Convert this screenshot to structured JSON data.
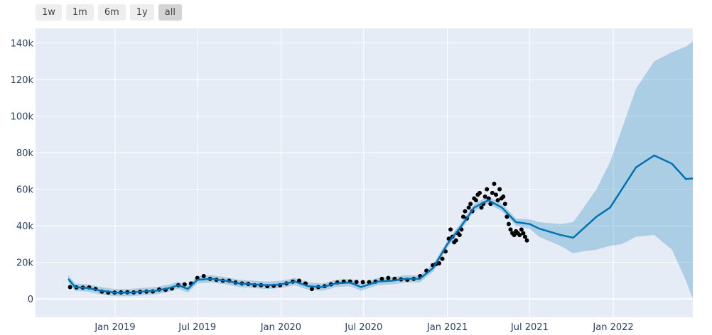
{
  "range_selector": {
    "buttons": [
      "1w",
      "1m",
      "6m",
      "1y",
      "all"
    ],
    "active": "all"
  },
  "colors": {
    "background": "#e5ecf6",
    "grid": "#ffffff",
    "forecast_line": "#0072B2",
    "uncertainty_band": "rgba(0,114,178,0.25)",
    "actual_points": "#000000",
    "tick_text": "#2a3f5f"
  },
  "chart_data": {
    "type": "line",
    "title": "",
    "xlabel": "",
    "ylabel": "",
    "xlim": [
      "2018-07-10",
      "2022-06-25"
    ],
    "ylim": [
      -10000,
      148000
    ],
    "grid": true,
    "y_ticks": [
      0,
      20000,
      40000,
      60000,
      80000,
      100000,
      120000,
      140000
    ],
    "y_tick_labels": [
      "0",
      "20k",
      "40k",
      "60k",
      "80k",
      "100k",
      "120k",
      "140k"
    ],
    "x_ticks": [
      "2019-01-01",
      "2019-07-01",
      "2020-01-01",
      "2020-07-01",
      "2021-01-01",
      "2021-07-01",
      "2022-01-01"
    ],
    "x_tick_labels": [
      "Jan 2019",
      "Jul 2019",
      "Jan 2020",
      "Jul 2020",
      "Jan 2021",
      "Jul 2021",
      "Jan 2022"
    ],
    "forecast": {
      "dates": [
        "2018-09-20",
        "2018-10-05",
        "2018-11-01",
        "2018-12-01",
        "2019-01-01",
        "2019-02-01",
        "2019-03-01",
        "2019-04-01",
        "2019-05-01",
        "2019-05-20",
        "2019-06-10",
        "2019-07-01",
        "2019-08-01",
        "2019-09-01",
        "2019-10-01",
        "2019-11-01",
        "2019-12-01",
        "2020-01-01",
        "2020-02-01",
        "2020-03-01",
        "2020-04-01",
        "2020-05-01",
        "2020-06-01",
        "2020-06-25",
        "2020-08-01",
        "2020-09-01",
        "2020-10-01",
        "2020-11-01",
        "2020-12-01",
        "2021-01-01",
        "2021-02-01",
        "2021-03-01",
        "2021-04-01",
        "2021-05-01",
        "2021-06-01",
        "2021-07-01",
        "2021-07-22",
        "2021-09-07",
        "2021-10-05",
        "2021-10-25",
        "2021-11-25",
        "2021-12-25",
        "2022-01-20",
        "2022-02-20",
        "2022-04-01",
        "2022-05-10",
        "2022-06-10",
        "2022-06-25"
      ],
      "yhat": [
        11000,
        6500,
        6000,
        4500,
        3500,
        3500,
        4000,
        4500,
        6000,
        7500,
        5500,
        10500,
        11000,
        10000,
        8500,
        8000,
        7500,
        8000,
        9500,
        7000,
        6500,
        8500,
        9000,
        6500,
        9500,
        10000,
        11000,
        11000,
        17000,
        30000,
        40000,
        50000,
        54000,
        50000,
        42000,
        41000,
        38500,
        35000,
        33500,
        38000,
        45000,
        50000,
        60000,
        72000,
        78500,
        74000,
        65500,
        66000
      ],
      "lower": [
        9000,
        4500,
        4000,
        2500,
        1500,
        1500,
        2000,
        2500,
        4000,
        5500,
        3500,
        8500,
        9000,
        8000,
        6500,
        6000,
        5500,
        6000,
        7500,
        5000,
        4500,
        6500,
        7000,
        4500,
        7500,
        8000,
        9000,
        9000,
        15000,
        28000,
        38000,
        48000,
        52000,
        48000,
        40000,
        38500,
        34000,
        29000,
        25000,
        26000,
        27000,
        29000,
        30000,
        34000,
        35000,
        27000,
        10000,
        0
      ],
      "upper": [
        13000,
        8500,
        8000,
        6500,
        5500,
        5500,
        6000,
        6500,
        8000,
        9500,
        7500,
        12500,
        13000,
        12000,
        10500,
        10000,
        9500,
        10000,
        11500,
        9000,
        8500,
        10500,
        11000,
        8500,
        11500,
        12000,
        13000,
        13000,
        19000,
        32000,
        42000,
        52000,
        56000,
        52000,
        44000,
        43500,
        42000,
        41000,
        42000,
        49000,
        60000,
        75000,
        93000,
        115000,
        130000,
        135000,
        138000,
        141000
      ]
    },
    "actual": {
      "dates": [
        "2018-09-24",
        "2018-10-08",
        "2018-10-22",
        "2018-11-05",
        "2018-11-19",
        "2018-12-03",
        "2018-12-17",
        "2018-12-31",
        "2019-01-14",
        "2019-01-28",
        "2019-02-11",
        "2019-02-25",
        "2019-03-11",
        "2019-03-25",
        "2019-04-08",
        "2019-04-22",
        "2019-05-06",
        "2019-05-20",
        "2019-06-03",
        "2019-06-17",
        "2019-07-01",
        "2019-07-15",
        "2019-07-29",
        "2019-08-12",
        "2019-08-26",
        "2019-09-09",
        "2019-09-23",
        "2019-10-07",
        "2019-10-21",
        "2019-11-04",
        "2019-11-18",
        "2019-12-02",
        "2019-12-16",
        "2019-12-30",
        "2020-01-13",
        "2020-01-27",
        "2020-02-10",
        "2020-02-24",
        "2020-03-09",
        "2020-03-23",
        "2020-04-06",
        "2020-04-20",
        "2020-05-04",
        "2020-05-18",
        "2020-06-01",
        "2020-06-15",
        "2020-06-29",
        "2020-07-13",
        "2020-07-27",
        "2020-08-10",
        "2020-08-24",
        "2020-09-07",
        "2020-09-21",
        "2020-10-05",
        "2020-10-19",
        "2020-11-02",
        "2020-11-16",
        "2020-11-30",
        "2020-12-07",
        "2020-12-14",
        "2020-12-21",
        "2020-12-28",
        "2021-01-04",
        "2021-01-08",
        "2021-01-12",
        "2021-01-16",
        "2021-01-20",
        "2021-01-24",
        "2021-01-28",
        "2021-02-01",
        "2021-02-05",
        "2021-02-09",
        "2021-02-13",
        "2021-02-17",
        "2021-02-21",
        "2021-02-25",
        "2021-03-01",
        "2021-03-05",
        "2021-03-09",
        "2021-03-13",
        "2021-03-17",
        "2021-03-21",
        "2021-03-25",
        "2021-03-29",
        "2021-04-02",
        "2021-04-06",
        "2021-04-10",
        "2021-04-14",
        "2021-04-18",
        "2021-04-22",
        "2021-04-26",
        "2021-04-30",
        "2021-05-04",
        "2021-05-08",
        "2021-05-12",
        "2021-05-16",
        "2021-05-20",
        "2021-05-24",
        "2021-05-28",
        "2021-06-01",
        "2021-06-05",
        "2021-06-09",
        "2021-06-13",
        "2021-06-17",
        "2021-06-21",
        "2021-06-25"
      ],
      "values": [
        6500,
        6300,
        6200,
        6300,
        5500,
        4000,
        3500,
        3500,
        3600,
        3700,
        3600,
        3900,
        4000,
        4100,
        5200,
        5000,
        5700,
        7500,
        8000,
        8500,
        11500,
        12500,
        11000,
        10500,
        10000,
        10000,
        9000,
        8500,
        8200,
        7500,
        7500,
        7000,
        7200,
        7500,
        8500,
        9500,
        10000,
        8500,
        5500,
        6500,
        7000,
        8000,
        9000,
        9500,
        9500,
        9300,
        9200,
        9200,
        9500,
        11000,
        11500,
        11000,
        10700,
        10500,
        11000,
        12500,
        15500,
        18500,
        19000,
        19500,
        22000,
        26000,
        33000,
        38000,
        34000,
        31000,
        32000,
        36000,
        35000,
        38000,
        45000,
        48000,
        44000,
        50000,
        52000,
        48000,
        55000,
        54000,
        57000,
        58000,
        50000,
        52000,
        56000,
        60000,
        55000,
        52000,
        58000,
        63000,
        57000,
        54000,
        60000,
        55000,
        56000,
        52000,
        45000,
        41000,
        38000,
        36000,
        35000,
        37000,
        36000,
        35000,
        38000,
        36000,
        34000,
        32000
      ]
    }
  }
}
